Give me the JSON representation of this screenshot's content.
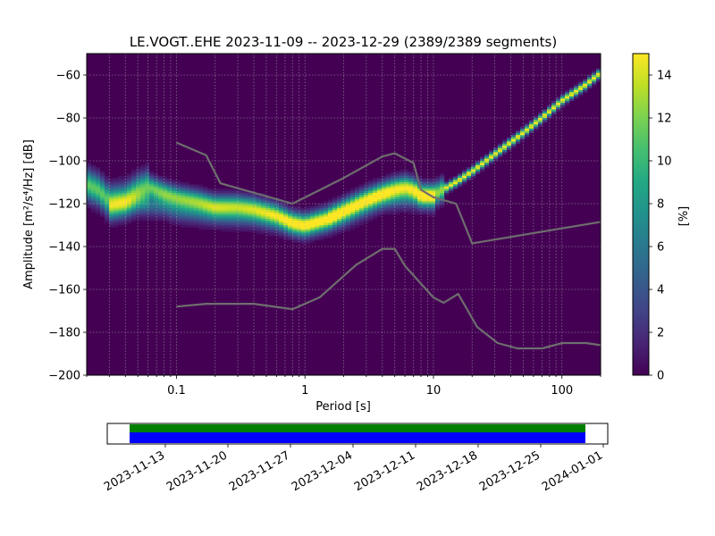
{
  "chart_data": {
    "type": "heatmap",
    "title": "LE.VOGT..EHE   2023-11-09 -- 2023-12-29  (2389/2389 segments)",
    "xlabel": "Period [s]",
    "ylabel": "Amplitude [m²/s⁴/Hz] [dB]",
    "x_scale": "log",
    "xlim": [
      0.02,
      200
    ],
    "ylim": [
      -200,
      -50
    ],
    "x_ticks": [
      0.1,
      1,
      10,
      100
    ],
    "x_tick_labels": [
      "0.1",
      "1",
      "10",
      "100"
    ],
    "y_ticks": [
      -200,
      -180,
      -160,
      -140,
      -120,
      -100,
      -80,
      -60
    ],
    "y_tick_labels": [
      "−200",
      "−180",
      "−160",
      "−140",
      "−120",
      "−100",
      "−80",
      "−60"
    ],
    "grid": true,
    "colorbar": {
      "label": "[%]",
      "range": [
        0,
        15
      ],
      "ticks": [
        0,
        2,
        4,
        6,
        8,
        10,
        12,
        14
      ],
      "tick_labels": [
        "0",
        "2",
        "4",
        "6",
        "8",
        "10",
        "12",
        "14"
      ],
      "colormap": "viridis"
    },
    "ppd_ridge": [
      [
        0.02,
        -111
      ],
      [
        0.025,
        -114
      ],
      [
        0.03,
        -119
      ],
      [
        0.04,
        -118
      ],
      [
        0.05,
        -114
      ],
      [
        0.06,
        -112
      ],
      [
        0.08,
        -115
      ],
      [
        0.1,
        -117
      ],
      [
        0.15,
        -119
      ],
      [
        0.2,
        -121
      ],
      [
        0.3,
        -121
      ],
      [
        0.4,
        -122
      ],
      [
        0.6,
        -125
      ],
      [
        0.8,
        -129
      ],
      [
        1,
        -130
      ],
      [
        1.5,
        -127
      ],
      [
        2,
        -123
      ],
      [
        3,
        -118
      ],
      [
        4,
        -115
      ],
      [
        5,
        -113
      ],
      [
        6,
        -112
      ],
      [
        7,
        -113
      ],
      [
        8,
        -116
      ],
      [
        10,
        -116
      ],
      [
        15,
        -110
      ],
      [
        20,
        -105
      ],
      [
        30,
        -97
      ],
      [
        50,
        -87
      ],
      [
        70,
        -80
      ],
      [
        100,
        -72
      ],
      [
        150,
        -65
      ],
      [
        200,
        -59
      ]
    ],
    "ppd_secondary": [
      [
        0.03,
        -123
      ],
      [
        0.05,
        -120
      ],
      [
        0.08,
        -121
      ],
      [
        0.1,
        -123
      ],
      [
        0.2,
        -125
      ],
      [
        0.4,
        -126
      ],
      [
        0.6,
        -128
      ],
      [
        1,
        -131
      ],
      [
        2,
        -126
      ],
      [
        4,
        -118
      ],
      [
        6,
        -117
      ],
      [
        10,
        -118
      ]
    ],
    "nhnm": [
      [
        0.1,
        -91.5
      ],
      [
        0.17,
        -97.4
      ],
      [
        0.22,
        -110.5
      ],
      [
        0.8,
        -120
      ],
      [
        2,
        -108
      ],
      [
        4,
        -98
      ],
      [
        5,
        -96.5
      ],
      [
        7,
        -101
      ],
      [
        8,
        -113.5
      ],
      [
        10,
        -117
      ],
      [
        15,
        -120
      ],
      [
        20,
        -138.5
      ],
      [
        200,
        -128.5
      ]
    ],
    "nlnm": [
      [
        0.1,
        -168
      ],
      [
        0.17,
        -166.7
      ],
      [
        0.4,
        -166.7
      ],
      [
        0.8,
        -169.2
      ],
      [
        1.3,
        -163.7
      ],
      [
        2.5,
        -148.6
      ],
      [
        4,
        -141.1
      ],
      [
        5,
        -141.1
      ],
      [
        6,
        -149
      ],
      [
        10,
        -163.8
      ],
      [
        12,
        -166.2
      ],
      [
        15.6,
        -162.1
      ],
      [
        21.9,
        -177.5
      ],
      [
        31.6,
        -185
      ],
      [
        45,
        -187.5
      ],
      [
        70,
        -187.5
      ],
      [
        101,
        -185
      ],
      [
        154,
        -185
      ],
      [
        200,
        -186
      ]
    ],
    "timeline": {
      "tick_labels": [
        "2023-11-13",
        "2023-11-20",
        "2023-11-27",
        "2023-12-04",
        "2023-12-11",
        "2023-12-18",
        "2023-12-25",
        "2024-01-01"
      ],
      "range_start": "2023-11-09",
      "range_end": "2023-12-29",
      "axis_start": "2023-11-06.5",
      "axis_end": "2024-01-01.5",
      "bar_colors": [
        "#008000",
        "#0000ff"
      ]
    }
  }
}
